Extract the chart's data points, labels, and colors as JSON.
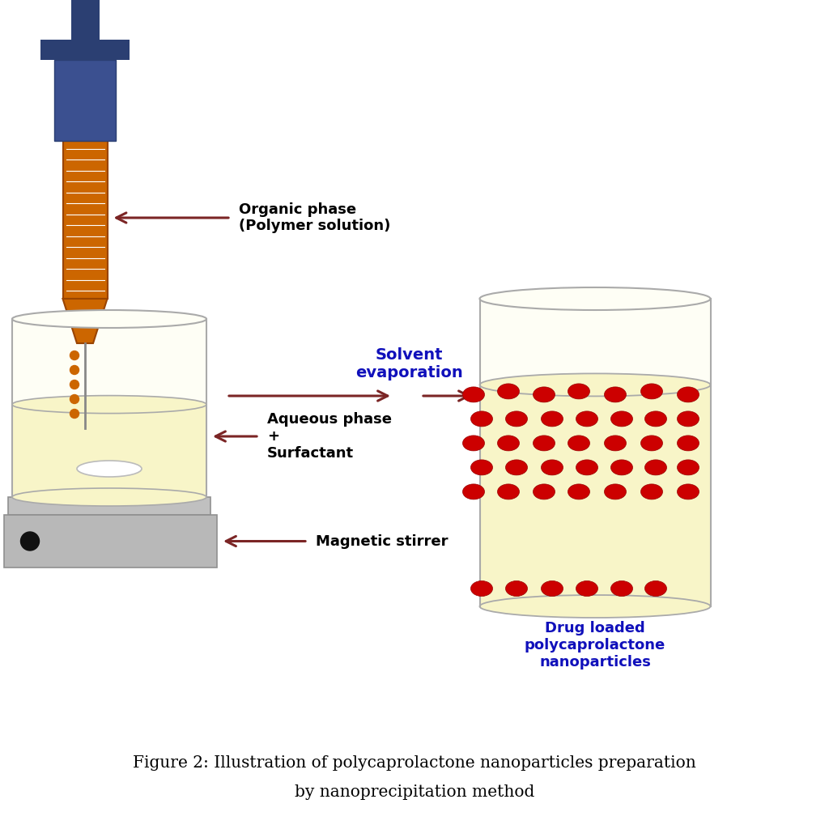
{
  "bg_color": "#ffffff",
  "title_line1": "Figure 2: Illustration of polycaprolactone nanoparticles preparation",
  "title_line2": "by nanoprecipitation method",
  "title_color": "#000000",
  "title_fontsize": 14.5,
  "arrow_color": "#7B2525",
  "label_color": "#000000",
  "blue_dark": "#2B3F72",
  "blue_mid": "#3B5090",
  "orange_color": "#CC6600",
  "syringe_label": "Organic phase\n(Polymer solution)",
  "beaker_label1": "Aqueous phase\n+\nSurfactant",
  "stirrer_label": "Magnetic stirrer",
  "solvent_label": "Solvent\nevaporation",
  "drug_label": "Drug loaded\npolycaprolactone\nnanoparticles",
  "beaker_fill": "#FEFEF5",
  "beaker_liquid": "#F8F5C8",
  "beaker_stroke": "#AAAAAA",
  "nanoparticle_color": "#CC0000",
  "orange_dots": "#FF8C00",
  "stirrer_gray": "#C0C0C0",
  "stirrer_dark": "#909090",
  "hotplate_gray": "#B8B8B8",
  "solvent_text_color": "#1010BB",
  "needle_color": "#888888"
}
